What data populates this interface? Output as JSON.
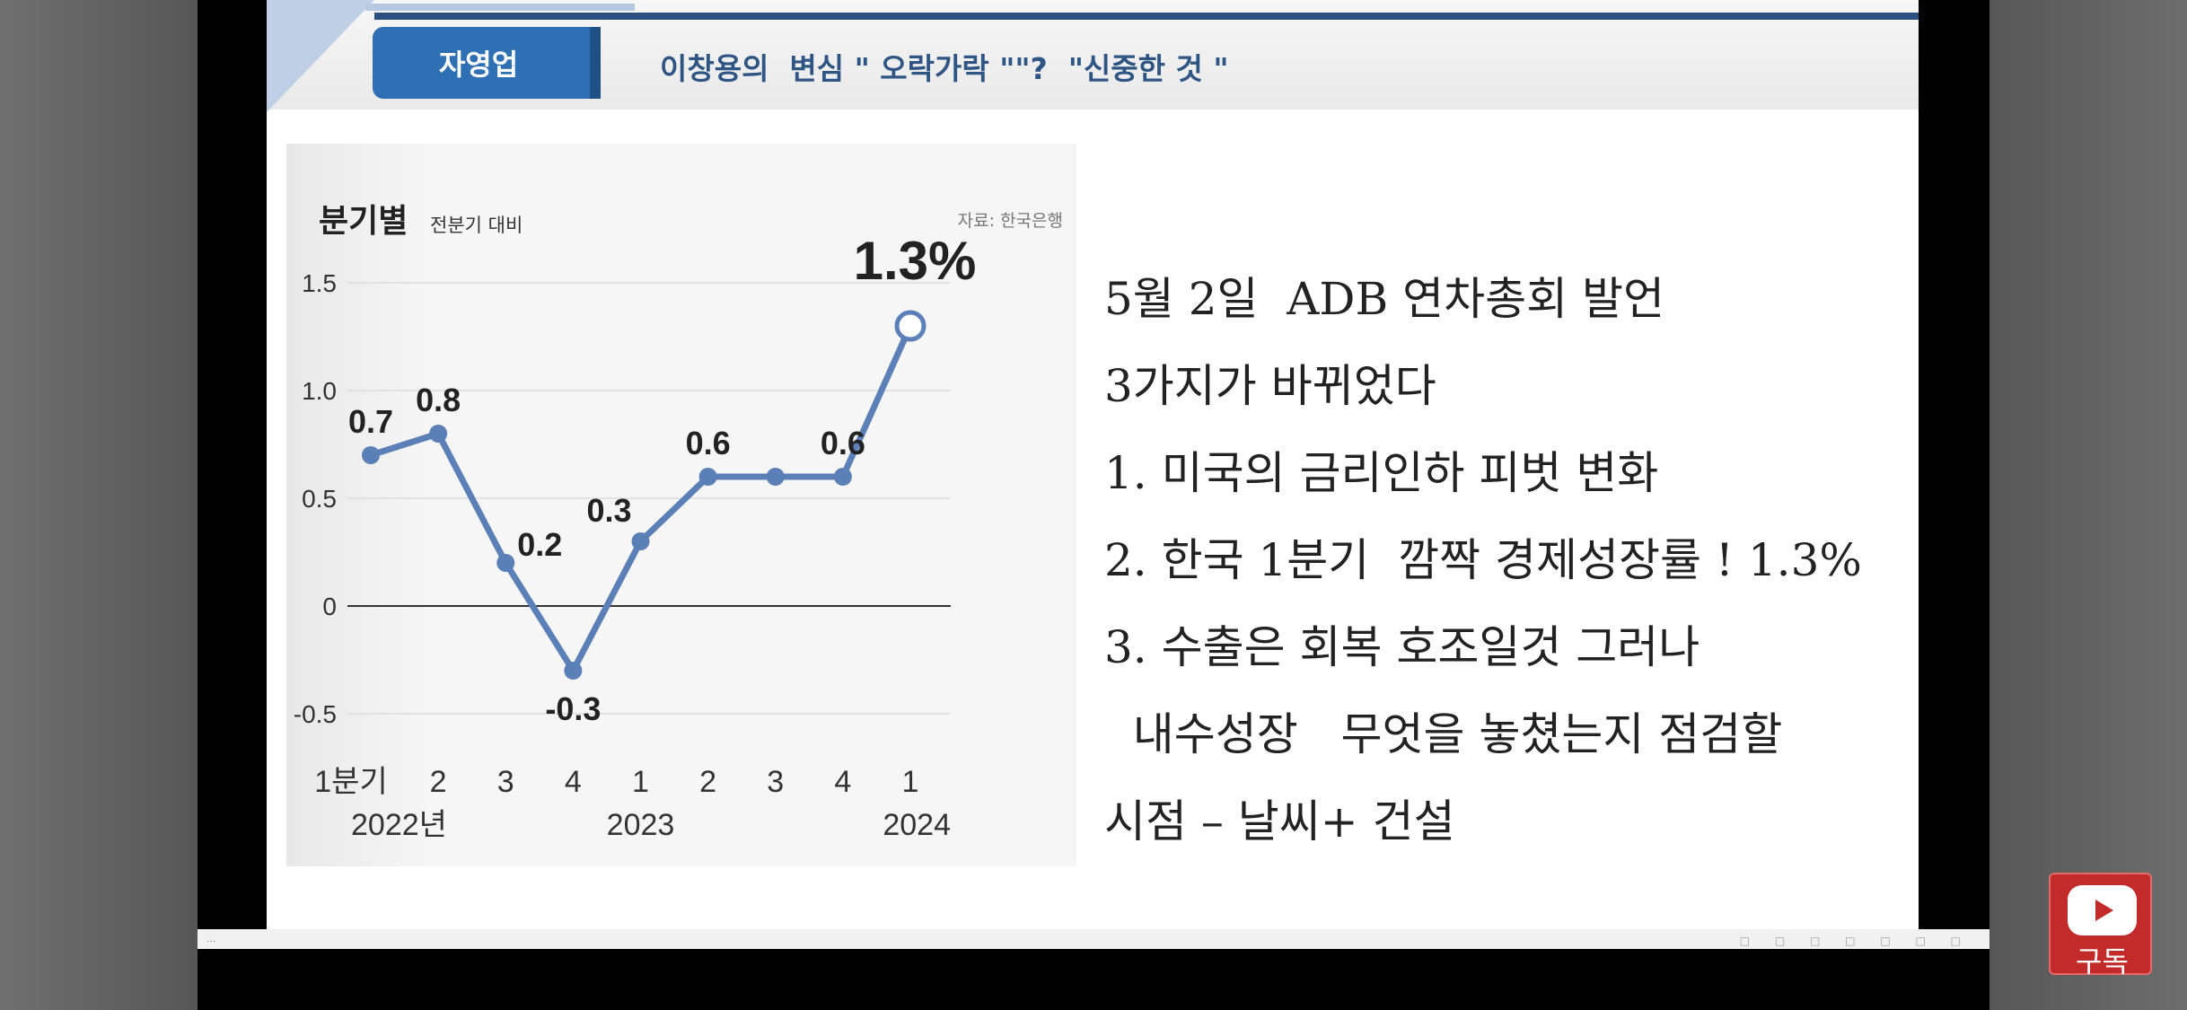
{
  "slide": {
    "tag": "자영업",
    "headline": "이창용의  변심 \" 오락가락 \"\"?  \"신중한 것 \"",
    "bullets": [
      "5월 2일  ADB 연차총회 발언",
      "3가지가 바뀌었다",
      "1. 미국의 금리인하 피벗 변화",
      "2. 한국 1분기  깜짝 경제성장률 ! 1.3%",
      "3. 수출은 회복 호조일것 그러나",
      "  내수성장   무엇을 놓쳤는지 점검할",
      "시점 – 날씨+ 건설"
    ]
  },
  "chart_data": {
    "type": "line",
    "title": "분기별",
    "subtitle": "전분기 대비",
    "source": "자료: 한국은행",
    "categories": [
      "1분기",
      "2",
      "3",
      "4",
      "1",
      "2",
      "3",
      "4",
      "1"
    ],
    "year_labels": [
      "2022년",
      "2023",
      "2024"
    ],
    "values": [
      0.7,
      0.8,
      0.2,
      -0.3,
      0.3,
      0.6,
      0.6,
      0.6,
      1.3
    ],
    "data_labels": [
      "0.7",
      "0.8",
      "0.2",
      "-0.3",
      "0.3",
      "0.6",
      "",
      "0.6",
      "1.3%"
    ],
    "y_ticks": [
      "1.5",
      "1.0",
      "0.5",
      "0",
      "-0.5"
    ],
    "ylim": [
      -0.5,
      1.5
    ],
    "line_color": "#5b7fb7",
    "grid": true
  },
  "subscribe": {
    "label": "구독",
    "icon": "youtube-play-icon"
  },
  "bottom_bar": {
    "text": "..."
  }
}
